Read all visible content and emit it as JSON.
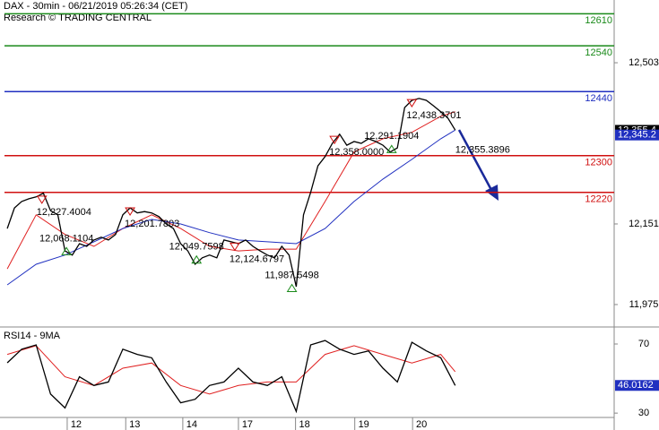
{
  "chart_data": [
    {
      "type": "line",
      "title": "DAX - 30min - 06/21/2019 05:26:34 (CET)",
      "subtitle": "Research © TRADING CENTRAL",
      "x": [
        1,
        2,
        3,
        4,
        5,
        6,
        7,
        8,
        9,
        10,
        11,
        12,
        13,
        14,
        15,
        16,
        17,
        18,
        19,
        20,
        21,
        22,
        23,
        24,
        25,
        26,
        27,
        28,
        29,
        30,
        31,
        32,
        33,
        34,
        35,
        36,
        37,
        38,
        39,
        40,
        41,
        42,
        43,
        44,
        45,
        46,
        47,
        48,
        49,
        50,
        51,
        52,
        53,
        54,
        55,
        56,
        57,
        58,
        59,
        60,
        61,
        62,
        63
      ],
      "xlim": [
        0,
        85
      ],
      "ylim": [
        11926,
        12640
      ],
      "yticks": [
        {
          "value": 12503,
          "label": "12,503"
        },
        {
          "value": 12151,
          "label": "12,151"
        },
        {
          "value": 11975,
          "label": "11,975"
        }
      ],
      "series": [
        {
          "color": "#000000",
          "values": [
            12141,
            12186,
            12200,
            12206,
            12210,
            12218,
            12180,
            12171,
            12092,
            12083,
            12108,
            12102,
            12116,
            12122,
            12116,
            12128,
            12171,
            12186,
            12175,
            12178,
            12175,
            12167,
            12151,
            12141,
            12108,
            12092,
            12063,
            12077,
            12083,
            12077,
            12116,
            12112,
            12108,
            12116,
            12102,
            12092,
            12083,
            12077,
            12102,
            12083,
            12014,
            12171,
            12220,
            12278,
            12298,
            12327,
            12347,
            12323,
            12331,
            12327,
            12337,
            12331,
            12323,
            12308,
            12317,
            12405,
            12421,
            12425,
            12421,
            12409,
            12396,
            12382,
            12356
          ]
        }
      ],
      "ma_x": [
        1,
        5,
        9,
        13,
        17,
        21,
        25,
        29,
        33,
        37,
        41,
        45,
        49,
        53,
        57,
        61,
        63
      ],
      "moving_averages": [
        {
          "color": "#e02020",
          "values": [
            12053,
            12171,
            12128,
            12102,
            12141,
            12171,
            12141,
            12102,
            12092,
            12096,
            12096,
            12200,
            12308,
            12337,
            12351,
            12386,
            12396
          ]
        },
        {
          "color": "#2030c0",
          "values": [
            12018,
            12063,
            12083,
            12112,
            12141,
            12161,
            12151,
            12132,
            12116,
            12112,
            12108,
            12141,
            12200,
            12249,
            12292,
            12337,
            12356
          ]
        }
      ],
      "levels": [
        {
          "value": 12610,
          "color": "#1a8a1a"
        },
        {
          "value": 12540,
          "color": "#1a8a1a"
        },
        {
          "value": 12440,
          "color": "#2030c0"
        },
        {
          "value": 12300,
          "color": "#d01010"
        },
        {
          "value": 12220,
          "color": "#d01010"
        }
      ],
      "highs": {
        "color": "#d01010",
        "x": [
          5.8,
          18,
          32.5,
          46.3,
          57
        ],
        "values": [
          12227.4004,
          12201.7803,
          12124.6797,
          12358.0,
          12438.3701
        ],
        "value_labels": [
          "12,227.4004",
          "12,201.7803",
          "12,124.6797",
          "12,358.0000",
          "12,438.3701"
        ]
      },
      "lows": {
        "color": "#1a8a1a",
        "x": [
          9.2,
          27.2,
          40.4,
          54.2
        ],
        "values": [
          12068.1104,
          12049.7598,
          11987.5498,
          12291.1904
        ],
        "value_labels": [
          "12,068.1104",
          "12,049.7598",
          "11,987.5498",
          "12,291.1904"
        ]
      },
      "last": {
        "x": 63,
        "value": 12355.3896,
        "value_label": "12,355.3896"
      },
      "price_boxes": [
        {
          "value": 12355.4,
          "label": "12,355.4",
          "color": "#000000"
        },
        {
          "value": 12345.2,
          "label": "12,345.2",
          "color": "#2030c0"
        }
      ]
    },
    {
      "type": "line",
      "title": "RSI14 - 9MA",
      "x": [
        1,
        3,
        5,
        7,
        9,
        11,
        13,
        15,
        17,
        19,
        21,
        23,
        25,
        27,
        29,
        31,
        33,
        35,
        37,
        39,
        41,
        43,
        45,
        47,
        49,
        51,
        53,
        55,
        57,
        59,
        61,
        63
      ],
      "xlim": [
        0,
        85
      ],
      "ylim": [
        28,
        78.3
      ],
      "yticks": [
        70,
        30
      ],
      "xticks": [
        {
          "value": 9.3,
          "label": "12"
        },
        {
          "value": 17.4,
          "label": "13"
        },
        {
          "value": 25.3,
          "label": "14"
        },
        {
          "value": 33.0,
          "label": "17"
        },
        {
          "value": 40.9,
          "label": "18"
        },
        {
          "value": 49.1,
          "label": "19"
        },
        {
          "value": 57.1,
          "label": "20"
        }
      ],
      "series": [
        {
          "color": "#000000",
          "values": [
            59.1,
            67,
            69.5,
            41,
            33,
            51,
            46,
            48,
            67,
            64,
            62,
            48,
            36,
            38,
            46,
            48,
            56,
            48,
            46,
            51,
            31,
            69.5,
            72,
            67,
            64,
            66,
            56,
            48,
            71,
            66,
            62,
            46
          ]
        }
      ],
      "ma_x": [
        1,
        5,
        9,
        13,
        17,
        21,
        25,
        29,
        33,
        37,
        41,
        45,
        49,
        53,
        57,
        61,
        63
      ],
      "moving_averages": [
        {
          "color": "#e02020",
          "values": [
            64,
            69,
            51,
            46,
            56,
            59,
            46,
            41,
            46,
            48,
            48,
            64,
            69,
            64,
            59,
            64,
            54
          ]
        }
      ],
      "value_box": {
        "value": 46.0162,
        "label": "46.0162",
        "color": "#2030c0"
      }
    }
  ]
}
